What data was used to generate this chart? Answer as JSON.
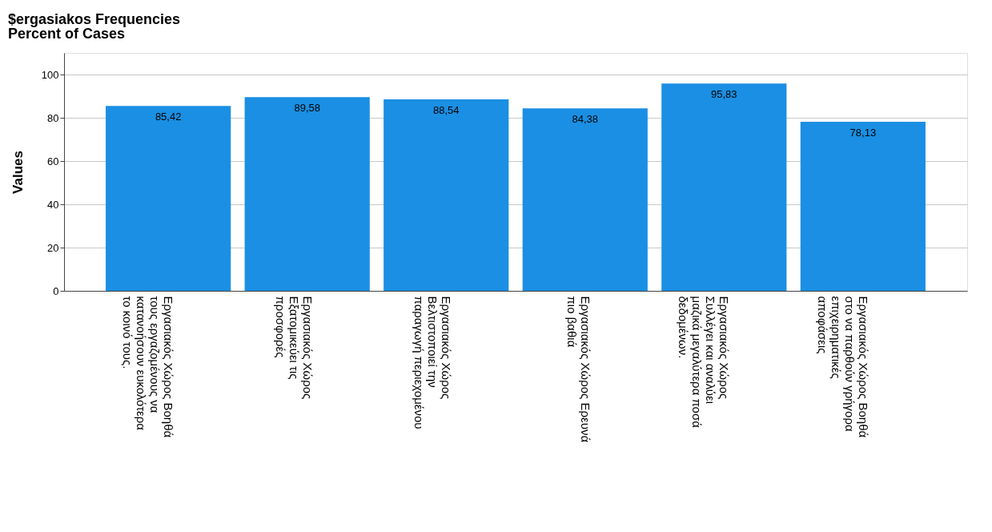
{
  "chart_data": {
    "type": "bar",
    "title": "$ergasiakos Frequencies",
    "subtitle": "Percent of Cases",
    "ylabel": "Values",
    "categories": [
      "Εργασιακός Χώρος Βοηθά τους εργαζομένους να κατανοήσουν ευκολότερα το κοινό τους.",
      "Εργασιακός Χώρος Εξατομικεύει τις προσφορές",
      "Εργασιακός Χώρος Βελτιστοποιεί την παραγωγή περιεχομένου",
      "Εργασιακός Χώρος Ερευνά πιο βαθιά",
      "Εργασιακός Χώρος Συλλέγει και αναλύει μαζικά μεγαλύτερα ποσά δεδομένων.",
      "Εργασιακός Χώρος Βοηθά στο να παρθούν γρήγορα επιχειρηματικές αποφάσεις"
    ],
    "values": [
      85.42,
      89.58,
      88.54,
      84.38,
      95.83,
      78.13
    ],
    "value_labels": [
      "85,42",
      "89,58",
      "88,54",
      "84,38",
      "95,83",
      "78,13"
    ],
    "color": "#1a8fe3",
    "ylim": [
      0,
      110
    ],
    "yticks": [
      0,
      20,
      40,
      60,
      80,
      100
    ],
    "grid": "y"
  }
}
